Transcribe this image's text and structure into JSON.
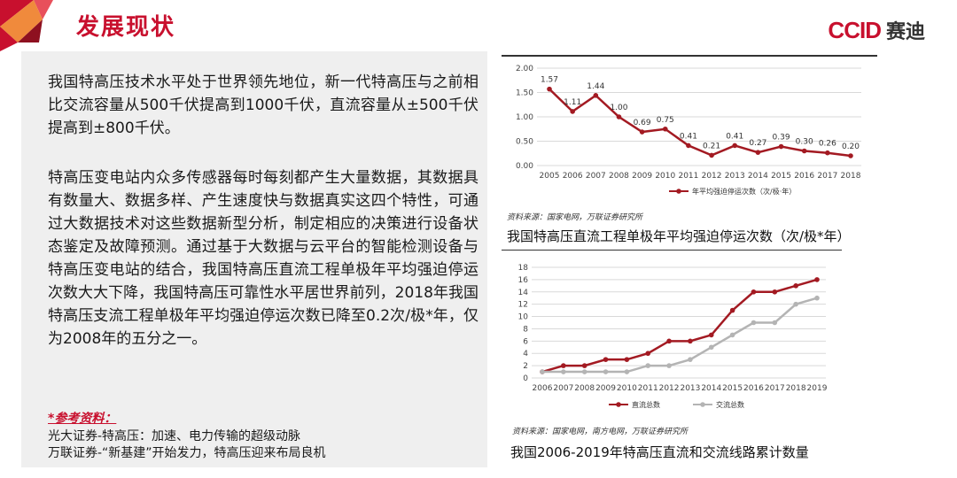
{
  "header": {
    "title": "发展现状",
    "logo_mark": "CCID",
    "logo_name": "赛迪"
  },
  "text_panel": {
    "paragraph_1": "我国特高压技术水平处于世界领先地位，新一代特高压与之前相比交流容量从500千伏提高到1000千伏，直流容量从±500千伏提高到±800千伏。",
    "paragraph_2": "特高压变电站内众多传感器每时每刻都产生大量数据，其数据具有数量大、数据多样、产生速度快与数据真实这四个特性，可通过大数据技术对这些数据新型分析，制定相应的决策进行设备状态鉴定及故障预测。通过基于大数据与云平台的智能检测设备与特高压变电站的结合，我国特高压直流工程单极年平均强迫停运次数大大下降，我国特高压可靠性水平居世界前列，2018年我国特高压支流工程单极年平均强迫停运次数已降至0.2次/极*年，仅为2008年的五分之一。",
    "references_title": "*参考资料：",
    "references": [
      "光大证券-特高压：加速、电力传输的超级动脉",
      "万联证券-“新基建”开始发力，特高压迎来布局良机"
    ]
  },
  "colors": {
    "brand_red": "#c8102e",
    "series_dark_red": "#a31a22",
    "series_gray": "#b4b4b4",
    "panel_gray": "#efefef"
  },
  "chart_data": [
    {
      "type": "line",
      "title": "我国特高压直流工程单极年平均强迫停运次数（次/极*年）",
      "source": "资料来源：国家电网，万联证券研究所",
      "x": [
        "2005",
        "2006",
        "2007",
        "2008",
        "2009",
        "2010",
        "2011",
        "2012",
        "2013",
        "2014",
        "2015",
        "2016",
        "2017",
        "2018"
      ],
      "series": [
        {
          "name": "年平均强迫停运次数（次/极·年）",
          "values": [
            1.57,
            1.11,
            1.44,
            1.0,
            0.69,
            0.75,
            0.41,
            0.21,
            0.41,
            0.27,
            0.39,
            0.3,
            0.26,
            0.2
          ],
          "color": "#a31a22"
        }
      ],
      "value_labels": [
        "1.57",
        "1.11",
        "1.44",
        "1.00",
        "0.69",
        "0.75",
        "0.41",
        "0.21",
        "0.41",
        "0.27",
        "0.39",
        "0.30",
        "0.26",
        "0.20"
      ],
      "yticks": [
        "0.00",
        "0.50",
        "1.00",
        "1.50",
        "2.00"
      ],
      "ylim": [
        0,
        2
      ],
      "grid": true,
      "legend": "bottom"
    },
    {
      "type": "line",
      "title": "我国2006-2019年特高压直流和交流线路累计数量",
      "source": "资料来源：国家电网，南方电网，万联证券研究所",
      "x": [
        "2006",
        "2007",
        "2008",
        "2009",
        "2010",
        "2011",
        "2012",
        "2013",
        "2014",
        "2015",
        "2016",
        "2017",
        "2018",
        "2019"
      ],
      "series": [
        {
          "name": "直流总数",
          "values": [
            1,
            2,
            2,
            3,
            3,
            4,
            6,
            6,
            7,
            11,
            14,
            14,
            15,
            16
          ],
          "color": "#a31a22"
        },
        {
          "name": "交流总数",
          "values": [
            1,
            1,
            1,
            1,
            1,
            2,
            2,
            3,
            5,
            7,
            9,
            9,
            12,
            13
          ],
          "color": "#b4b4b4"
        }
      ],
      "yticks": [
        "0",
        "2",
        "4",
        "6",
        "8",
        "10",
        "12",
        "14",
        "16",
        "18"
      ],
      "ylim": [
        0,
        18
      ],
      "grid": true,
      "legend": "bottom"
    }
  ]
}
